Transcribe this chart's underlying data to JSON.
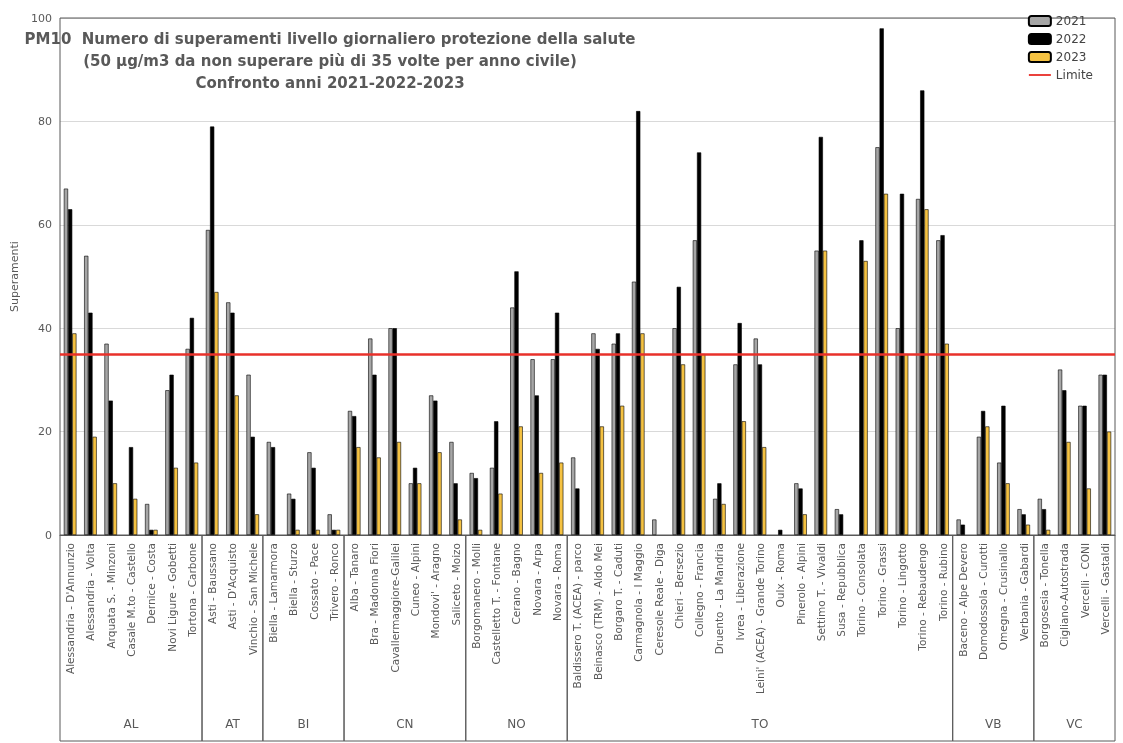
{
  "chart_data": {
    "type": "bar",
    "title": "PM10  Numero di superamenti livello giornaliero protezione della salute",
    "subtitle": "(50 µg/m3 da non superare più di 35 volte per anno civile)\nConfronto anni 2021-2022-2023",
    "ylabel": "Superamenti",
    "categories": [
      "Alessandria - D'Annunzio",
      "Alessandria - Volta",
      "Arquata S. - Minzoni",
      "Casale M.to - Castello",
      "Dernice - Costa",
      "Novi Ligure - Gobetti",
      "Tortona - Carbone",
      "Asti - Baussano",
      "Asti - D'Acquisto",
      "Vinchio - San Michele",
      "Biella - Lamarmora",
      "Biella - Sturzo",
      "Cossato - Pace",
      "Trivero - Ronco",
      "Alba - Tanaro",
      "Bra - Madonna Fiori",
      "Cavallermaggiore-Galilei",
      "Cuneo - Alpini",
      "Mondovi' - Aragno",
      "Saliceto - Moizo",
      "Borgomanero - Molli",
      "Castelletto T. - Fontane",
      "Cerano - Bagno",
      "Novara - Arpa",
      "Novara - Roma",
      "Baldissero T. (ACEA) - parco",
      "Beinasco (TRM) - Aldo Mei",
      "Borgaro T. - Caduti",
      "Carmagnola - I Maggio",
      "Ceresole Reale - Diga",
      "Chieri - Bersezio",
      "Collegno - Francia",
      "Druento - La Mandria",
      "Ivrea - Liberazione",
      "Leini' (ACEA) - Grande Torino",
      "Oulx - Roma",
      "Pinerolo - Alpini",
      "Settimo T. - Vivaldi",
      "Susa - Repubblica",
      "Torino - Consolata",
      "Torino - Grassi",
      "Torino - Lingotto",
      "Torino - Rebaudengo",
      "Torino - Rubino",
      "Baceno - Alpe Devero",
      "Domodossola - Curotti",
      "Omegna - Crusinallo",
      "Verbania - Gabardi",
      "Borgosesia - Tonella",
      "Cigliano-Autostrada",
      "Vercelli - CONI",
      "Vercelli - Gastaldi"
    ],
    "series": [
      {
        "name": "2021",
        "color": "#a6a6a6",
        "values": [
          67,
          54,
          37,
          null,
          6,
          28,
          36,
          59,
          45,
          31,
          18,
          8,
          16,
          4,
          24,
          38,
          40,
          10,
          27,
          18,
          12,
          13,
          44,
          34,
          34,
          15,
          39,
          37,
          49,
          3,
          40,
          57,
          7,
          33,
          38,
          null,
          10,
          55,
          5,
          null,
          75,
          40,
          65,
          57,
          3,
          19,
          14,
          5,
          7,
          32,
          25,
          31
        ]
      },
      {
        "name": "2022",
        "color": "#000000",
        "values": [
          63,
          43,
          26,
          17,
          1,
          31,
          42,
          79,
          43,
          19,
          17,
          7,
          13,
          1,
          23,
          31,
          40,
          13,
          26,
          10,
          11,
          22,
          51,
          27,
          43,
          9,
          36,
          39,
          82,
          null,
          48,
          74,
          10,
          41,
          33,
          1,
          9,
          77,
          4,
          57,
          98,
          66,
          86,
          58,
          2,
          24,
          25,
          4,
          5,
          28,
          25,
          31
        ]
      },
      {
        "name": "2023",
        "color": "#f5c242",
        "values": [
          39,
          19,
          10,
          7,
          1,
          13,
          14,
          47,
          27,
          4,
          null,
          1,
          1,
          1,
          17,
          15,
          18,
          10,
          16,
          3,
          1,
          8,
          21,
          12,
          14,
          null,
          21,
          25,
          39,
          null,
          33,
          35,
          6,
          22,
          17,
          null,
          4,
          55,
          null,
          53,
          66,
          35,
          63,
          37,
          null,
          21,
          10,
          2,
          1,
          18,
          9,
          20
        ]
      }
    ],
    "ref_lines": [
      {
        "axis": "y",
        "value": 35,
        "label": "Limite",
        "color": "#e8302a"
      }
    ],
    "annotations": [
      "AL",
      "AT",
      "BI",
      "CN",
      "NO",
      "TO",
      "VB",
      "VC"
    ],
    "ylim": [
      0,
      100
    ],
    "yticks": [
      0,
      20,
      40,
      60,
      80,
      100
    ],
    "grid": "y",
    "legend": "top right"
  }
}
